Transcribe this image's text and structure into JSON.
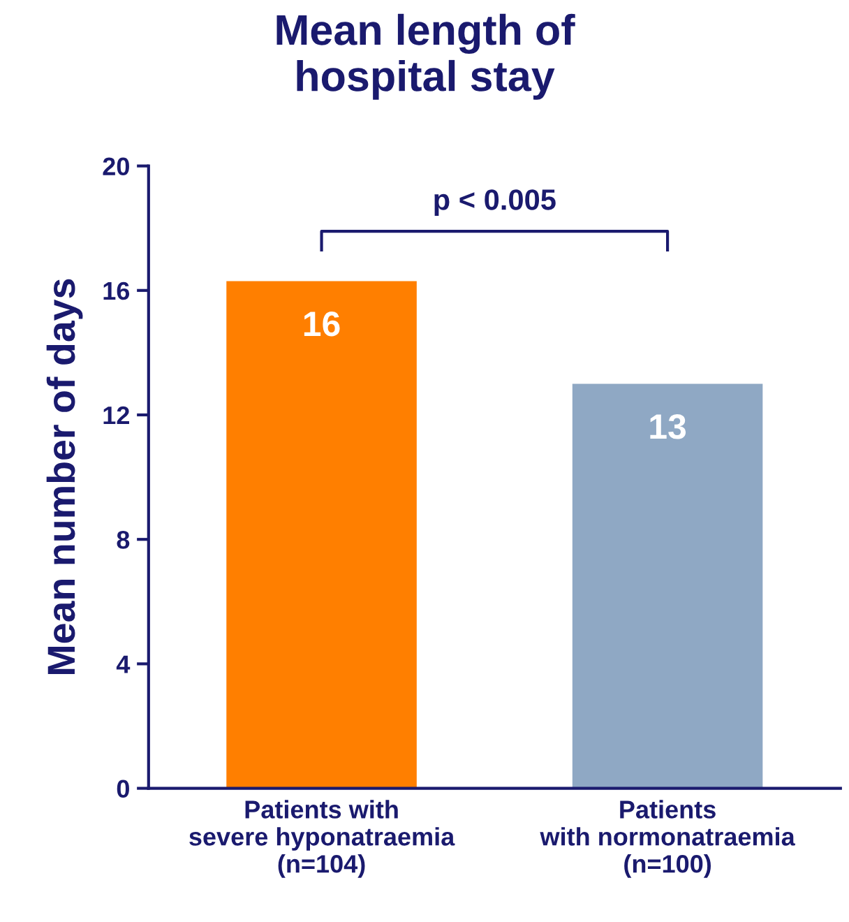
{
  "chart_data": {
    "type": "bar",
    "title": "Mean length of\nhospital stay",
    "ylabel": "Mean number of days",
    "categories": [
      "Patients with\nsevere hyponatraemia\n(n=104)",
      "Patients\nwith normonatraemia\n(n=100)"
    ],
    "values": [
      16.3,
      13.0
    ],
    "colors": [
      "#ff7f00",
      "#8fa8c4"
    ],
    "value_labels": [
      "16",
      "13"
    ],
    "ylim": [
      0,
      20
    ],
    "yticks": [
      0,
      4,
      8,
      12,
      16,
      20
    ],
    "grid": false,
    "legend": false,
    "annotations": [
      "p < 0.005"
    ]
  }
}
